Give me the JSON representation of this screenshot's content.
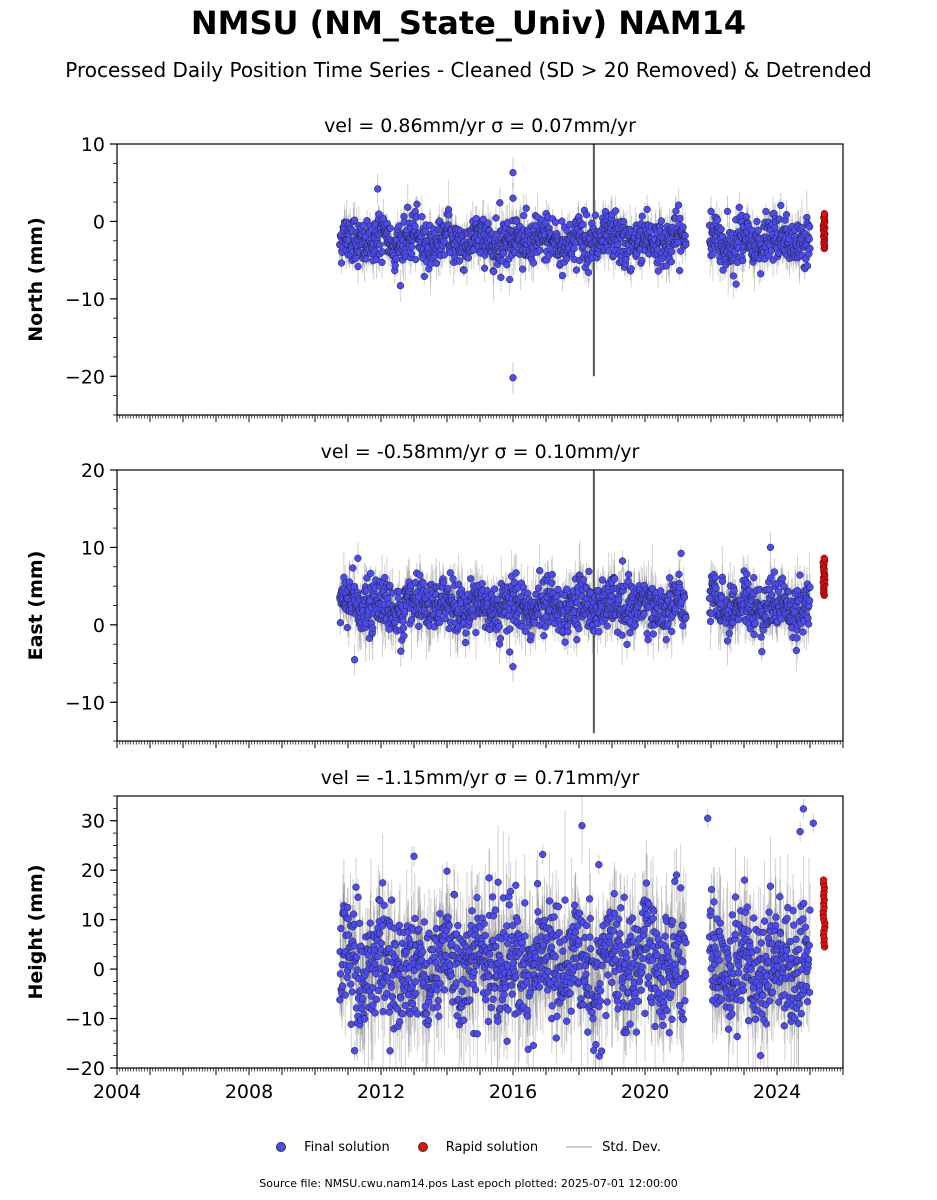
{
  "title": "NMSU (NM_State_Univ) NAM14",
  "subtitle": "Processed Daily Position Time Series - Cleaned (SD > 20 Removed) & Detrended",
  "footer": "Source file: NMSU.cwu.nam14.pos  Last epoch plotted: 2025-07-01 12:00:00",
  "legend": {
    "final": "Final solution",
    "rapid": "Rapid solution",
    "std": "Std. Dev."
  },
  "colors": {
    "final": "#4b4bf5",
    "rapid": "#e01010",
    "std": "#aaaaaa"
  },
  "chart_data": [
    {
      "type": "scatter",
      "title": "vel = 0.86mm/yr   σ = 0.07mm/yr",
      "ylabel": "North (mm)",
      "xlim": [
        2004,
        2026
      ],
      "ylim": [
        -25,
        10
      ],
      "yticks": [
        10,
        0,
        -10,
        -20
      ],
      "ytick_labels": [
        "10",
        "0",
        "−10",
        "−20"
      ],
      "data_span": [
        2010.75,
        2025.5
      ],
      "gap": [
        2021.25,
        2021.95
      ],
      "mean_level": -2.5,
      "scatter_sd": 1.5,
      "error_sd": 1.2,
      "outliers": [
        [
          2016.0,
          6.3
        ],
        [
          2016.0,
          3.0
        ],
        [
          2016.0,
          -20.2
        ],
        [
          2015.6,
          2.4
        ],
        [
          2018.5,
          0.8
        ],
        [
          2011.9,
          4.2
        ],
        [
          2022.0,
          1.3
        ],
        [
          2022.5,
          1.3
        ],
        [
          2017.5,
          -7.0
        ],
        [
          2015.9,
          -7.5
        ]
      ],
      "spike": {
        "x": 2018.45,
        "min": -20,
        "max": 10
      },
      "rapid": {
        "x_start": 2025.0,
        "x_end": 2025.5,
        "min": -3.5,
        "max": 1.0
      }
    },
    {
      "type": "scatter",
      "title": "vel = -0.58mm/yr   σ = 0.10mm/yr",
      "ylabel": "East (mm)",
      "xlim": [
        2004,
        2026
      ],
      "ylim": [
        -15,
        20
      ],
      "yticks": [
        20,
        10,
        0,
        -10
      ],
      "ytick_labels": [
        "20",
        "10",
        "0",
        "−10"
      ],
      "data_span": [
        2010.75,
        2025.5
      ],
      "gap": [
        2021.25,
        2021.95
      ],
      "mean_level": 2.5,
      "scatter_sd": 1.7,
      "error_sd": 1.5,
      "outliers": [
        [
          2011.3,
          8.6
        ],
        [
          2011.2,
          -4.5
        ],
        [
          2012.6,
          -3.4
        ],
        [
          2016.0,
          -5.4
        ],
        [
          2015.9,
          -3.5
        ],
        [
          2023.8,
          10.0
        ],
        [
          2024.6,
          -1.7
        ],
        [
          2019.5,
          6.5
        ]
      ],
      "spike": {
        "x": 2018.45,
        "min": -14,
        "max": 20
      },
      "rapid": {
        "x_start": 2025.0,
        "x_end": 2025.5,
        "min": 3.8,
        "max": 8.6
      }
    },
    {
      "type": "scatter",
      "title": "vel = -1.15mm/yr   σ = 0.71mm/yr",
      "ylabel": "Height (mm)",
      "xlim": [
        2004,
        2026
      ],
      "ylim": [
        -20,
        35
      ],
      "yticks": [
        30,
        20,
        10,
        0,
        -10,
        -20
      ],
      "ytick_labels": [
        "30",
        "20",
        "10",
        "0",
        "−10",
        "−20"
      ],
      "xticks": [
        2004,
        2008,
        2012,
        2016,
        2020,
        2024
      ],
      "xtick_labels": [
        "2004",
        "2008",
        "2012",
        "2016",
        "2020",
        "2024"
      ],
      "data_span": [
        2010.75,
        2025.5
      ],
      "gap": [
        2021.25,
        2021.95
      ],
      "mean_level": 1.0,
      "scatter_sd": 6.0,
      "error_sd": 5.0,
      "outliers": [
        [
          2021.9,
          30.5
        ],
        [
          2013.0,
          22.8
        ],
        [
          2016.9,
          23.2
        ],
        [
          2018.6,
          21.1
        ],
        [
          2014.0,
          19.8
        ],
        [
          2024.8,
          32.4
        ],
        [
          2025.1,
          29.5
        ],
        [
          2024.7,
          27.8
        ],
        [
          2023.5,
          -17.5
        ],
        [
          2011.2,
          -16.5
        ]
      ],
      "rapid": {
        "x_start": 2025.0,
        "x_end": 2025.5,
        "min": 4.5,
        "max": 18.0
      }
    }
  ]
}
